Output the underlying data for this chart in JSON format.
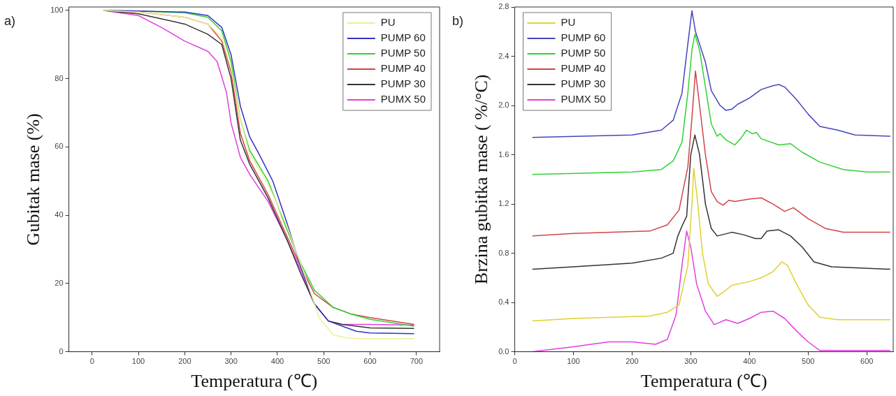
{
  "chart_data": [
    {
      "type": "line",
      "xlabel": "Temperatura (℃)",
      "ylabel": "Gubitak mase (%)",
      "annotations": [
        "a)"
      ],
      "xlim": [
        -50,
        750
      ],
      "ylim": [
        0,
        101
      ],
      "xticks": [
        0,
        100,
        200,
        300,
        400,
        500,
        600,
        700
      ],
      "yticks": [
        0,
        20,
        40,
        60,
        80,
        100
      ],
      "legend": "top right",
      "marker": "none",
      "line_style": "solid",
      "series": [
        {
          "name": "PU",
          "color": "#eeee99",
          "x": [
            25,
            100,
            200,
            250,
            280,
            300,
            320,
            340,
            380,
            420,
            460,
            490,
            520,
            550,
            600,
            695
          ],
          "values": [
            100,
            99.5,
            98,
            96,
            92,
            83,
            68,
            58,
            49,
            37,
            22,
            10,
            5,
            4,
            3.8,
            3.8
          ]
        },
        {
          "name": "PUMP 60",
          "color": "#3333c0",
          "x": [
            25,
            100,
            200,
            250,
            280,
            300,
            320,
            340,
            360,
            390,
            420,
            450,
            480,
            510,
            540,
            570,
            600,
            695
          ],
          "values": [
            100,
            99.8,
            99.5,
            98.5,
            95,
            87,
            72,
            63,
            58,
            50,
            38,
            25,
            14,
            9,
            7.5,
            6,
            5.5,
            5.3
          ]
        },
        {
          "name": "PUMP 50",
          "color": "#33d033",
          "x": [
            25,
            100,
            200,
            250,
            280,
            300,
            320,
            340,
            380,
            420,
            450,
            480,
            520,
            560,
            600,
            695
          ],
          "values": [
            100,
            99.8,
            99.3,
            98,
            94,
            85,
            68,
            59,
            50,
            36,
            26,
            18,
            13,
            11,
            9.5,
            7.5
          ]
        },
        {
          "name": "PUMP 40",
          "color": "#d04444",
          "x": [
            25,
            100,
            200,
            250,
            280,
            300,
            320,
            340,
            380,
            420,
            450,
            480,
            520,
            560,
            600,
            695
          ],
          "values": [
            100,
            99.5,
            98,
            96,
            91,
            82,
            64,
            56,
            46,
            34,
            25,
            17,
            13,
            11,
            10,
            8
          ]
        },
        {
          "name": "PUMP 30",
          "color": "#333333",
          "x": [
            25,
            100,
            200,
            250,
            280,
            300,
            320,
            340,
            380,
            420,
            450,
            480,
            510,
            540,
            600,
            695
          ],
          "values": [
            100,
            99,
            96,
            93,
            90,
            80,
            62,
            55,
            45,
            33,
            23,
            14,
            9,
            8,
            7,
            6.8
          ]
        },
        {
          "name": "PUMX 50",
          "color": "#e040e0",
          "x": [
            25,
            100,
            150,
            200,
            250,
            270,
            290,
            300,
            320,
            340,
            380,
            420,
            450,
            480,
            510,
            540,
            600,
            695
          ],
          "values": [
            100,
            98.5,
            95,
            91,
            88,
            85,
            76,
            67,
            57,
            52,
            44,
            33,
            24,
            14,
            9,
            8,
            8,
            7.8
          ]
        }
      ]
    },
    {
      "type": "line",
      "xlabel": "Temperatura (℃)",
      "ylabel": "Brzina gubitka mase ( %/°C)",
      "annotations": [
        "b)"
      ],
      "xlim": [
        0,
        645
      ],
      "ylim": [
        0,
        2.8
      ],
      "xticks": [
        0,
        100,
        200,
        300,
        400,
        500,
        600
      ],
      "yticks": [
        {
          "value": 0,
          "label": "0.0"
        },
        0.4,
        0.8,
        1.2,
        1.6,
        {
          "value": 2,
          "label": "2.0"
        },
        2.4,
        2.8
      ],
      "legend": "top left",
      "marker": "none",
      "line_style": "solid",
      "series": [
        {
          "name": "PU",
          "color": "#e0d030",
          "x": [
            30,
            100,
            230,
            260,
            280,
            295,
            302,
            305,
            312,
            320,
            330,
            345,
            360,
            370,
            400,
            420,
            440,
            455,
            465,
            480,
            500,
            520,
            550,
            640
          ],
          "values": [
            0.25,
            0.27,
            0.29,
            0.32,
            0.38,
            0.7,
            1.2,
            1.49,
            1.2,
            0.8,
            0.55,
            0.45,
            0.5,
            0.54,
            0.57,
            0.6,
            0.65,
            0.73,
            0.7,
            0.55,
            0.38,
            0.28,
            0.26,
            0.26
          ]
        },
        {
          "name": "PUMP 60",
          "color": "#4444c0",
          "x": [
            30,
            200,
            250,
            270,
            285,
            295,
            302,
            308,
            315,
            325,
            335,
            350,
            360,
            370,
            380,
            400,
            420,
            440,
            450,
            460,
            480,
            500,
            520,
            550,
            580,
            640
          ],
          "values": [
            1.74,
            1.76,
            1.8,
            1.88,
            2.1,
            2.5,
            2.77,
            2.6,
            2.5,
            2.35,
            2.12,
            2,
            1.96,
            1.97,
            2.01,
            2.06,
            2.13,
            2.16,
            2.17,
            2.15,
            2.05,
            1.93,
            1.83,
            1.8,
            1.76,
            1.75
          ]
        },
        {
          "name": "PUMP 50",
          "color": "#33d033",
          "x": [
            30,
            200,
            250,
            270,
            285,
            295,
            302,
            307,
            315,
            325,
            335,
            345,
            350,
            360,
            375,
            385,
            395,
            405,
            412,
            420,
            450,
            470,
            490,
            520,
            560,
            600,
            640
          ],
          "values": [
            1.44,
            1.46,
            1.48,
            1.55,
            1.7,
            2.1,
            2.45,
            2.58,
            2.45,
            2.15,
            1.85,
            1.75,
            1.77,
            1.72,
            1.68,
            1.73,
            1.8,
            1.77,
            1.78,
            1.73,
            1.68,
            1.69,
            1.62,
            1.54,
            1.48,
            1.46,
            1.46
          ]
        },
        {
          "name": "PUMP 40",
          "color": "#d04444",
          "x": [
            30,
            100,
            230,
            260,
            280,
            295,
            302,
            308,
            315,
            325,
            335,
            345,
            355,
            365,
            375,
            400,
            420,
            440,
            460,
            475,
            500,
            530,
            560,
            640
          ],
          "values": [
            0.94,
            0.96,
            0.98,
            1.03,
            1.15,
            1.5,
            1.9,
            2.28,
            2,
            1.6,
            1.3,
            1.22,
            1.19,
            1.23,
            1.22,
            1.24,
            1.25,
            1.2,
            1.14,
            1.17,
            1.08,
            1,
            0.97,
            0.97
          ]
        },
        {
          "name": "PUMP 30",
          "color": "#333333",
          "x": [
            30,
            100,
            200,
            250,
            270,
            278,
            285,
            293,
            300,
            307,
            315,
            325,
            335,
            345,
            370,
            390,
            410,
            420,
            430,
            450,
            470,
            490,
            510,
            540,
            640
          ],
          "values": [
            0.67,
            0.69,
            0.72,
            0.76,
            0.8,
            0.94,
            1.02,
            1.1,
            1.6,
            1.76,
            1.6,
            1.2,
            1,
            0.94,
            0.97,
            0.95,
            0.92,
            0.92,
            0.98,
            0.99,
            0.94,
            0.85,
            0.73,
            0.69,
            0.67
          ]
        },
        {
          "name": "PUMX 50",
          "color": "#e040e0",
          "x": [
            30,
            100,
            160,
            200,
            240,
            260,
            275,
            285,
            293,
            300,
            310,
            325,
            340,
            360,
            380,
            400,
            420,
            440,
            460,
            480,
            500,
            520,
            540,
            640
          ],
          "values": [
            0,
            0.04,
            0.08,
            0.08,
            0.06,
            0.1,
            0.3,
            0.7,
            0.98,
            0.85,
            0.55,
            0.33,
            0.22,
            0.26,
            0.23,
            0.27,
            0.32,
            0.33,
            0.27,
            0.17,
            0.08,
            0.01,
            0.01,
            0.01
          ]
        }
      ]
    }
  ]
}
